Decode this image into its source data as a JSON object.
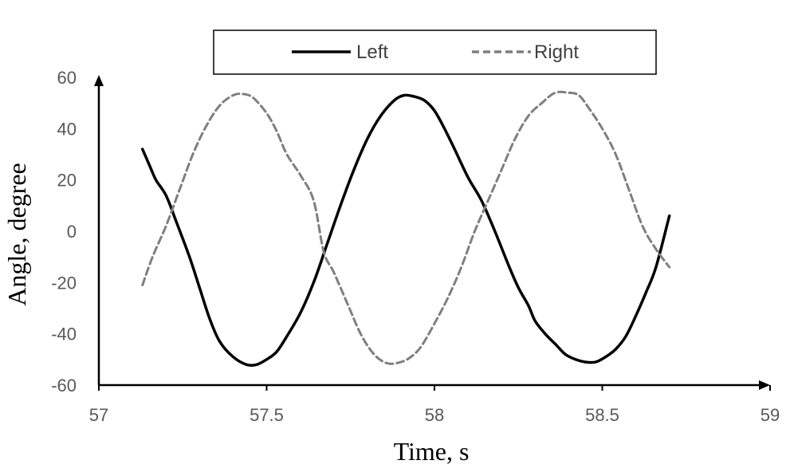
{
  "chart_data": {
    "type": "line",
    "title": "",
    "xlabel": "Time, s",
    "ylabel": "Angle, degree",
    "xlim": [
      57,
      59
    ],
    "ylim": [
      -60,
      60
    ],
    "xticks": [
      57,
      57.5,
      58,
      58.5,
      59
    ],
    "xtick_labels": [
      "57",
      "57.5",
      "58",
      "58.5",
      "59"
    ],
    "yticks": [
      60,
      40,
      20,
      0,
      -20,
      -40,
      -60
    ],
    "ytick_labels": [
      "60",
      "40",
      "20",
      "0",
      "-20",
      "-40",
      "-60"
    ],
    "grid": false,
    "legend": {
      "placement": "top",
      "entries": [
        "Left",
        "Right"
      ]
    },
    "series": [
      {
        "name": "Left",
        "color": "#000000",
        "style": "solid",
        "x": [
          57.13,
          57.15,
          57.17,
          57.2,
          57.23,
          57.27,
          57.3,
          57.33,
          57.36,
          57.4,
          57.44,
          57.47,
          57.5,
          57.53,
          57.56,
          57.6,
          57.64,
          57.68,
          57.72,
          57.76,
          57.8,
          57.84,
          57.88,
          57.91,
          57.94,
          57.97,
          58.0,
          58.03,
          58.06,
          58.1,
          58.14,
          58.18,
          58.22,
          58.25,
          58.28,
          58.3,
          58.33,
          58.36,
          58.39,
          58.42,
          58.45,
          58.48,
          58.51,
          58.54,
          58.57,
          58.6,
          58.63,
          58.66,
          58.7
        ],
        "y": [
          32,
          26,
          20,
          14,
          4,
          -10,
          -22,
          -34,
          -43,
          -49,
          -52,
          -52,
          -50,
          -47,
          -41,
          -32,
          -20,
          -5,
          10,
          24,
          36,
          45,
          51,
          53,
          52.5,
          51,
          47,
          40,
          32,
          21,
          12,
          0,
          -13,
          -22,
          -29,
          -35,
          -40,
          -44,
          -48,
          -50,
          -51,
          -51,
          -49,
          -46,
          -41,
          -33,
          -24,
          -14,
          6
        ]
      },
      {
        "name": "Right",
        "color": "#7f7f7f",
        "style": "dashed",
        "x": [
          57.13,
          57.16,
          57.2,
          57.24,
          57.28,
          57.32,
          57.36,
          57.4,
          57.43,
          57.46,
          57.5,
          57.53,
          57.56,
          57.6,
          57.64,
          57.67,
          57.7,
          57.74,
          57.78,
          57.82,
          57.86,
          57.9,
          57.93,
          57.96,
          58.0,
          58.04,
          58.08,
          58.12,
          58.16,
          58.2,
          58.24,
          58.28,
          58.32,
          58.36,
          58.4,
          58.43,
          58.46,
          58.5,
          58.54,
          58.58,
          58.62,
          58.66,
          58.7
        ],
        "y": [
          -21,
          -10,
          2,
          16,
          30,
          41,
          49,
          53,
          53.5,
          52,
          46,
          39,
          30,
          22,
          12,
          -8,
          -16,
          -28,
          -40,
          -48,
          -51.5,
          -51,
          -49,
          -45,
          -36,
          -26,
          -14,
          0,
          12,
          24,
          36,
          45,
          50,
          54,
          54,
          53,
          48,
          40,
          30,
          16,
          2,
          -7,
          -14
        ]
      }
    ]
  }
}
